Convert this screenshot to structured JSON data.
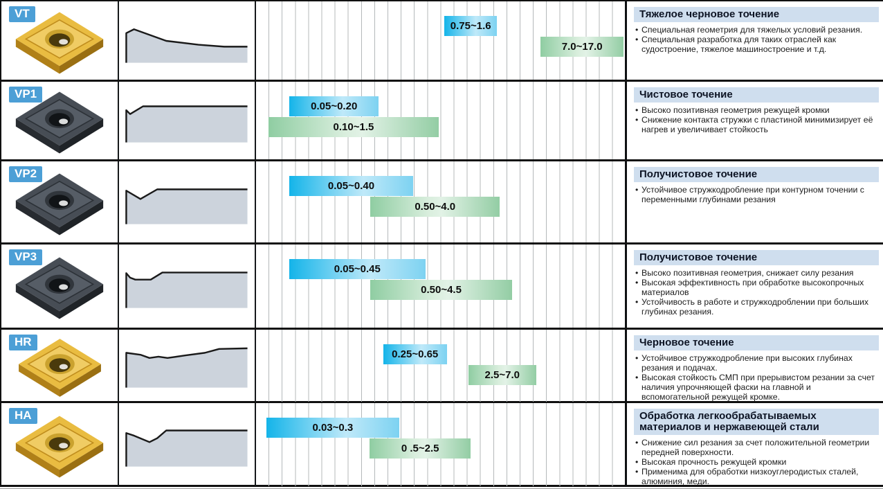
{
  "colors": {
    "badge_blue": "#4c9fd6",
    "feed_bar_blue": "#14b4e9",
    "doc_bar_green": "#8fcda2",
    "title_band_blue": "#cfdeee",
    "grid_line": "#b4b8ba"
  },
  "rows": [
    {
      "grade": "VT",
      "insert_finish": "gold",
      "feed_range": {
        "label": "0.75~1.6",
        "min": 0.75,
        "max": 1.6,
        "left_pct": 51.1,
        "width_pct": 14.2
      },
      "doc_range": {
        "label": "7.0~17.0",
        "min": 7.0,
        "max": 17.0,
        "left_pct": 77.2,
        "width_pct": 22.4
      },
      "title": "Тяжелое черновое точение",
      "bullets": [
        "Специальная геометрия для тяжелых условий резания.",
        "Специальная разработка для таких отраслей как судостроение, тяжелое машиностроение и т.д."
      ]
    },
    {
      "grade": "VP1",
      "insert_finish": "dark",
      "feed_range": {
        "label": "0.05~0.20",
        "min": 0.05,
        "max": 0.2,
        "left_pct": 9.0,
        "width_pct": 24.3
      },
      "doc_range": {
        "label": "0.10~1.5",
        "min": 0.1,
        "max": 1.5,
        "left_pct": 3.4,
        "width_pct": 46.1
      },
      "title": "Чистовое точение",
      "bullets": [
        "Высоко позитивная геометрия режущей кромки",
        "Снижение контакта стружки с пластиной минимизирует её нагрев и увеличивает стойкость"
      ]
    },
    {
      "grade": "VP2",
      "insert_finish": "dark",
      "feed_range": {
        "label": "0.05~0.40",
        "min": 0.05,
        "max": 0.4,
        "left_pct": 9.0,
        "width_pct": 33.6
      },
      "doc_range": {
        "label": "0.50~4.0",
        "min": 0.5,
        "max": 4.0,
        "left_pct": 31.0,
        "width_pct": 35.1
      },
      "title": "Получистовое точение",
      "bullets": [
        "Устойчивое стружкодробление при контурном точении с переменными глубинами резания"
      ]
    },
    {
      "grade": "VP3",
      "insert_finish": "dark",
      "feed_range": {
        "label": "0.05~0.45",
        "min": 0.05,
        "max": 0.45,
        "left_pct": 9.0,
        "width_pct": 36.9
      },
      "doc_range": {
        "label": "0.50~4.5",
        "min": 0.5,
        "max": 4.5,
        "left_pct": 31.0,
        "width_pct": 38.4
      },
      "title": "Получистовое точение",
      "bullets": [
        "Высоко позитивная геометрия, снижает силу резания",
        "Высокая эффективность при обработке высокопрочных материалов",
        "Устойчивость в работе и стружкодроблении при больших глубинах резания."
      ]
    },
    {
      "grade": "HR",
      "insert_finish": "gold",
      "feed_range": {
        "label": "0.25~0.65",
        "min": 0.25,
        "max": 0.65,
        "left_pct": 34.5,
        "width_pct": 17.2
      },
      "doc_range": {
        "label": "2.5~7.0",
        "min": 2.5,
        "max": 7.0,
        "left_pct": 57.6,
        "width_pct": 18.3
      },
      "title": "Черновое точение",
      "bullets": [
        "Устойчивое стружкодробление при высоких глубинах резания и подачах.",
        "Высокая стойкость СМП при прерывистом резании за счет наличия упрочняющей фаски на главной и вспомогательной режущей кромке."
      ]
    },
    {
      "grade": "HA",
      "insert_finish": "gold",
      "feed_range": {
        "label": "0.03~0.3",
        "min": 0.03,
        "max": 0.3,
        "left_pct": 2.8,
        "width_pct": 36.0
      },
      "doc_range": {
        "label": "0 .5~2.5",
        "min": 0.5,
        "max": 2.5,
        "left_pct": 30.8,
        "width_pct": 27.4
      },
      "title": "Обработка легкообрабатываемых материалов и нержавеющей стали",
      "bullets": [
        "Снижение сил резания за счет положительной геометрии передней поверхности.",
        "Высокая прочность режущей кромки",
        "Применима для обработки низкоуглеродистых сталей, алюминия, меди."
      ]
    }
  ]
}
